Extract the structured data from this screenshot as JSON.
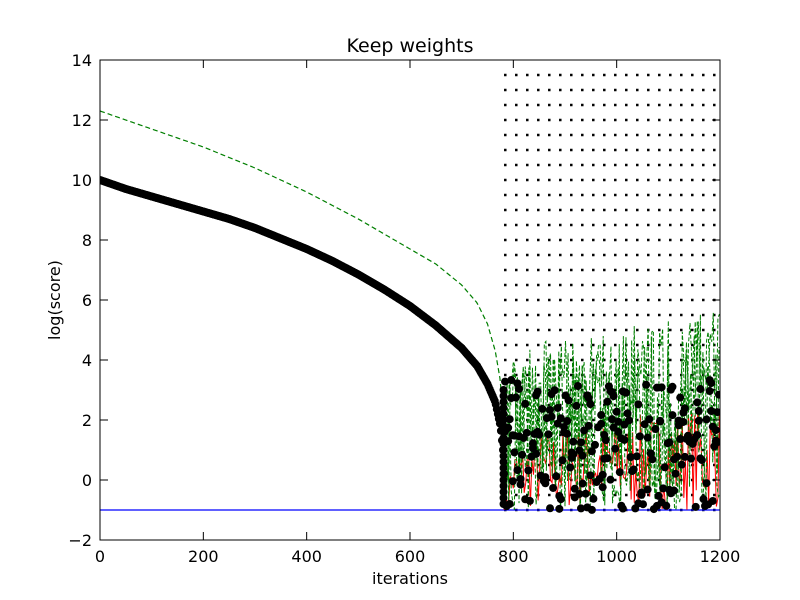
{
  "chart_data": {
    "type": "line",
    "title": "Keep weights",
    "xlabel": "iterations",
    "ylabel": "log(score)",
    "xlim": [
      0,
      1200
    ],
    "ylim": [
      -2,
      14
    ],
    "xticks": [
      0,
      200,
      400,
      600,
      800,
      1000,
      1200
    ],
    "yticks": [
      -2,
      0,
      2,
      4,
      6,
      8,
      10,
      12,
      14
    ],
    "grid": false,
    "legend": "none",
    "series": [
      {
        "style": "black-circle-markers",
        "color": "#000000",
        "x": [
          0,
          50,
          100,
          150,
          200,
          250,
          300,
          350,
          400,
          450,
          500,
          550,
          600,
          650,
          700,
          730,
          750,
          765,
          775,
          780,
          785,
          790,
          800,
          850,
          900,
          950,
          1000,
          1050,
          1100,
          1150,
          1200
        ],
        "y": [
          10.0,
          9.7,
          9.45,
          9.2,
          8.95,
          8.7,
          8.4,
          8.05,
          7.7,
          7.3,
          6.85,
          6.35,
          5.8,
          5.15,
          4.4,
          3.8,
          3.2,
          2.6,
          1.8,
          1.0,
          -1.0,
          1.5,
          2.0,
          2.5,
          2.4,
          2.6,
          2.8,
          2.9,
          3.0,
          3.2,
          3.3
        ]
      },
      {
        "style": "dashed",
        "color": "#007f00",
        "x": [
          0,
          50,
          100,
          150,
          200,
          250,
          300,
          350,
          400,
          450,
          500,
          550,
          600,
          650,
          700,
          730,
          750,
          765,
          775,
          780,
          785,
          790,
          800,
          850,
          900,
          950,
          1000,
          1050,
          1100,
          1150,
          1200
        ],
        "y": [
          12.3,
          12.0,
          11.7,
          11.4,
          11.1,
          10.75,
          10.4,
          10.0,
          9.6,
          9.15,
          8.7,
          8.2,
          7.7,
          7.2,
          6.5,
          5.9,
          5.2,
          4.3,
          3.3,
          2.2,
          -1.0,
          3.5,
          4.0,
          4.3,
          4.5,
          4.8,
          4.9,
          5.1,
          5.3,
          5.5,
          5.7
        ]
      },
      {
        "style": "solid",
        "color": "#ff0000",
        "x": [
          780,
          800,
          850,
          900,
          950,
          1000,
          1050,
          1100,
          1150,
          1200
        ],
        "y": [
          -1.0,
          1.2,
          1.6,
          1.8,
          1.9,
          2.1,
          2.2,
          2.3,
          2.5,
          2.6
        ]
      },
      {
        "style": "solid",
        "color": "#0000ff",
        "x": [
          0,
          1200
        ],
        "y": [
          -1.0,
          -1.0
        ]
      }
    ],
    "noise_region": {
      "x_start": 782,
      "x_end": 1200,
      "dash_rows_y": [
        -1.0,
        -0.5,
        0.0,
        0.5,
        1.0,
        1.5,
        2.0,
        2.5,
        3.0,
        3.5,
        4.0,
        4.5,
        5.0,
        5.5,
        6.0,
        6.5,
        7.0,
        7.5,
        8.0,
        8.5,
        9.0,
        9.5,
        10.0,
        10.5,
        11.0,
        11.5,
        12.0,
        12.5,
        13.0,
        13.5
      ],
      "dash_color": "#000000",
      "dot_color": "#000000",
      "green_color": "#007f00",
      "red_color": "#ff0000",
      "green_upper_envelope": [
        [
          785,
          3.8
        ],
        [
          850,
          4.6
        ],
        [
          950,
          5.0
        ],
        [
          1050,
          5.2
        ],
        [
          1150,
          5.5
        ],
        [
          1200,
          5.7
        ]
      ],
      "black_dot_upper_envelope": [
        [
          785,
          3.5
        ],
        [
          850,
          3.0
        ],
        [
          950,
          3.2
        ],
        [
          1050,
          3.3
        ],
        [
          1200,
          3.5
        ]
      ],
      "red_upper_envelope": [
        [
          785,
          1.5
        ],
        [
          850,
          1.9
        ],
        [
          950,
          2.2
        ],
        [
          1050,
          2.4
        ],
        [
          1200,
          2.6
        ]
      ]
    }
  }
}
